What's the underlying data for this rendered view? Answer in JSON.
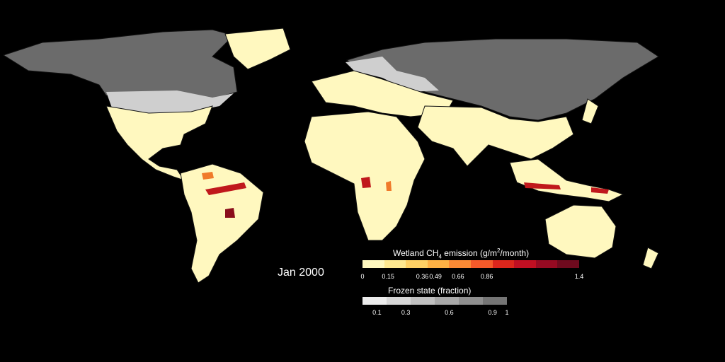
{
  "date_label": "Jan 2000",
  "legend_ch4": {
    "title_main": "Wetland CH",
    "title_sub": "4",
    "title_rest_a": " emission (g/m",
    "title_sup": "2",
    "title_rest_b": "/month)",
    "colors": [
      "#fff8bf",
      "#fee890",
      "#fed064",
      "#fdb144",
      "#fb8a35",
      "#f45a2a",
      "#dc261c",
      "#c00f22",
      "#960a22",
      "#6e0a1e"
    ],
    "ticks": [
      "0",
      "0.15",
      "0.36",
      "0.49",
      "0.66",
      "0.86",
      "1.4"
    ],
    "tick_fracs": [
      0.0,
      0.118,
      0.276,
      0.337,
      0.441,
      0.574,
      1.0
    ]
  },
  "legend_frozen": {
    "title": "Frozen state (fraction)",
    "colors": [
      "#ececec",
      "#d6d6d6",
      "#c0c0c0",
      "#a8a8a8",
      "#8f8f8f",
      "#757575"
    ],
    "ticks": [
      "0.1",
      "0.3",
      "0.6",
      "0.9",
      "1"
    ],
    "tick_fracs": [
      0.1,
      0.3,
      0.6,
      0.9,
      1.0
    ]
  },
  "colors": {
    "land": "#fff8bf",
    "frozen": "#6b6b6b",
    "background": "#000000"
  }
}
